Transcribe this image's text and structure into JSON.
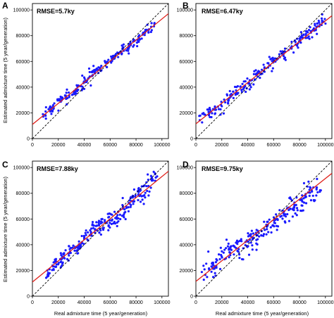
{
  "figure": {
    "xlabel": "Real admixture time (5 year/generation)",
    "ylabel": "Estimated admixture time (5 year/generation)"
  },
  "chart_data": [
    {
      "type": "scatter",
      "panel": "A",
      "annotation": "RMSE=5.7ky",
      "xlim": [
        0,
        105000
      ],
      "ylim": [
        0,
        105000
      ],
      "x_ticks": [
        0,
        20000,
        40000,
        60000,
        80000,
        100000
      ],
      "y_ticks": [
        0,
        20000,
        40000,
        60000,
        80000,
        100000
      ],
      "x_tick_labels": [
        "0",
        "20000",
        "40000",
        "60000",
        "80000",
        "100000"
      ],
      "y_tick_labels": [
        "0",
        "20000",
        "40000",
        "60000",
        "80000",
        "100000"
      ],
      "point_color": "#1a1aff",
      "fit_color": "#e0201a",
      "identity_color": "#000000",
      "fit_line": {
        "slope": 0.82,
        "intercept": 11000
      },
      "identity_line": {
        "slope": 1,
        "intercept": 0
      },
      "spread": 3500,
      "points_per_cluster": 16,
      "clusters": [
        12000,
        18000,
        24000,
        30000,
        36000,
        42000,
        48000,
        54000,
        60000,
        66000,
        72000,
        78000,
        84000,
        90000
      ]
    },
    {
      "type": "scatter",
      "panel": "B",
      "annotation": "RMSE=6.47ky",
      "xlim": [
        0,
        105000
      ],
      "ylim": [
        0,
        105000
      ],
      "x_ticks": [
        0,
        20000,
        40000,
        60000,
        80000,
        100000
      ],
      "y_ticks": [
        0,
        20000,
        40000,
        60000,
        80000,
        100000
      ],
      "x_tick_labels": [
        "0",
        "20000",
        "40000",
        "60000",
        "80000",
        "100000"
      ],
      "y_tick_labels": [
        "0",
        "20000",
        "40000",
        "60000",
        "80000",
        "100000"
      ],
      "point_color": "#1a1aff",
      "fit_color": "#e0201a",
      "identity_color": "#000000",
      "fit_line": {
        "slope": 0.8,
        "intercept": 11500
      },
      "identity_line": {
        "slope": 1,
        "intercept": 0
      },
      "spread": 4200,
      "points_per_cluster": 16,
      "clusters": [
        7000,
        14000,
        21000,
        28000,
        35000,
        42000,
        49000,
        56000,
        63000,
        70000,
        77000,
        84000,
        90000,
        96000
      ]
    },
    {
      "type": "scatter",
      "panel": "C",
      "annotation": "RMSE=7.88ky",
      "xlim": [
        0,
        105000
      ],
      "ylim": [
        0,
        105000
      ],
      "x_ticks": [
        0,
        20000,
        40000,
        60000,
        80000,
        100000
      ],
      "y_ticks": [
        0,
        20000,
        40000,
        60000,
        80000,
        100000
      ],
      "x_tick_labels": [
        "0",
        "20000",
        "40000",
        "60000",
        "80000",
        "100000"
      ],
      "y_tick_labels": [
        "0",
        "20000",
        "40000",
        "60000",
        "80000",
        "100000"
      ],
      "point_color": "#1a1aff",
      "fit_color": "#e0201a",
      "identity_color": "#000000",
      "fit_line": {
        "slope": 0.82,
        "intercept": 11000
      },
      "identity_line": {
        "slope": 1,
        "intercept": 0
      },
      "spread": 6000,
      "points_per_cluster": 18,
      "clusters": [
        14000,
        20000,
        26000,
        32000,
        38000,
        44000,
        50000,
        56000,
        62000,
        68000,
        74000,
        80000,
        86000,
        92000
      ]
    },
    {
      "type": "scatter",
      "panel": "D",
      "annotation": "RMSE=9.75ky",
      "xlim": [
        0,
        105000
      ],
      "ylim": [
        0,
        105000
      ],
      "x_ticks": [
        0,
        20000,
        40000,
        60000,
        80000,
        100000
      ],
      "y_ticks": [
        0,
        20000,
        40000,
        60000,
        80000,
        100000
      ],
      "x_tick_labels": [
        "0",
        "20000",
        "40000",
        "60000",
        "80000",
        "100000"
      ],
      "y_tick_labels": [
        "0",
        "20000",
        "40000",
        "60000",
        "80000",
        "100000"
      ],
      "point_color": "#1a1aff",
      "fit_color": "#e0201a",
      "identity_color": "#000000",
      "fit_line": {
        "slope": 0.8,
        "intercept": 11500
      },
      "identity_line": {
        "slope": 1,
        "intercept": 0
      },
      "spread": 7500,
      "points_per_cluster": 18,
      "clusters": [
        9000,
        16000,
        23000,
        30000,
        37000,
        44000,
        51000,
        58000,
        65000,
        72000,
        79000,
        86000,
        92000
      ]
    }
  ]
}
